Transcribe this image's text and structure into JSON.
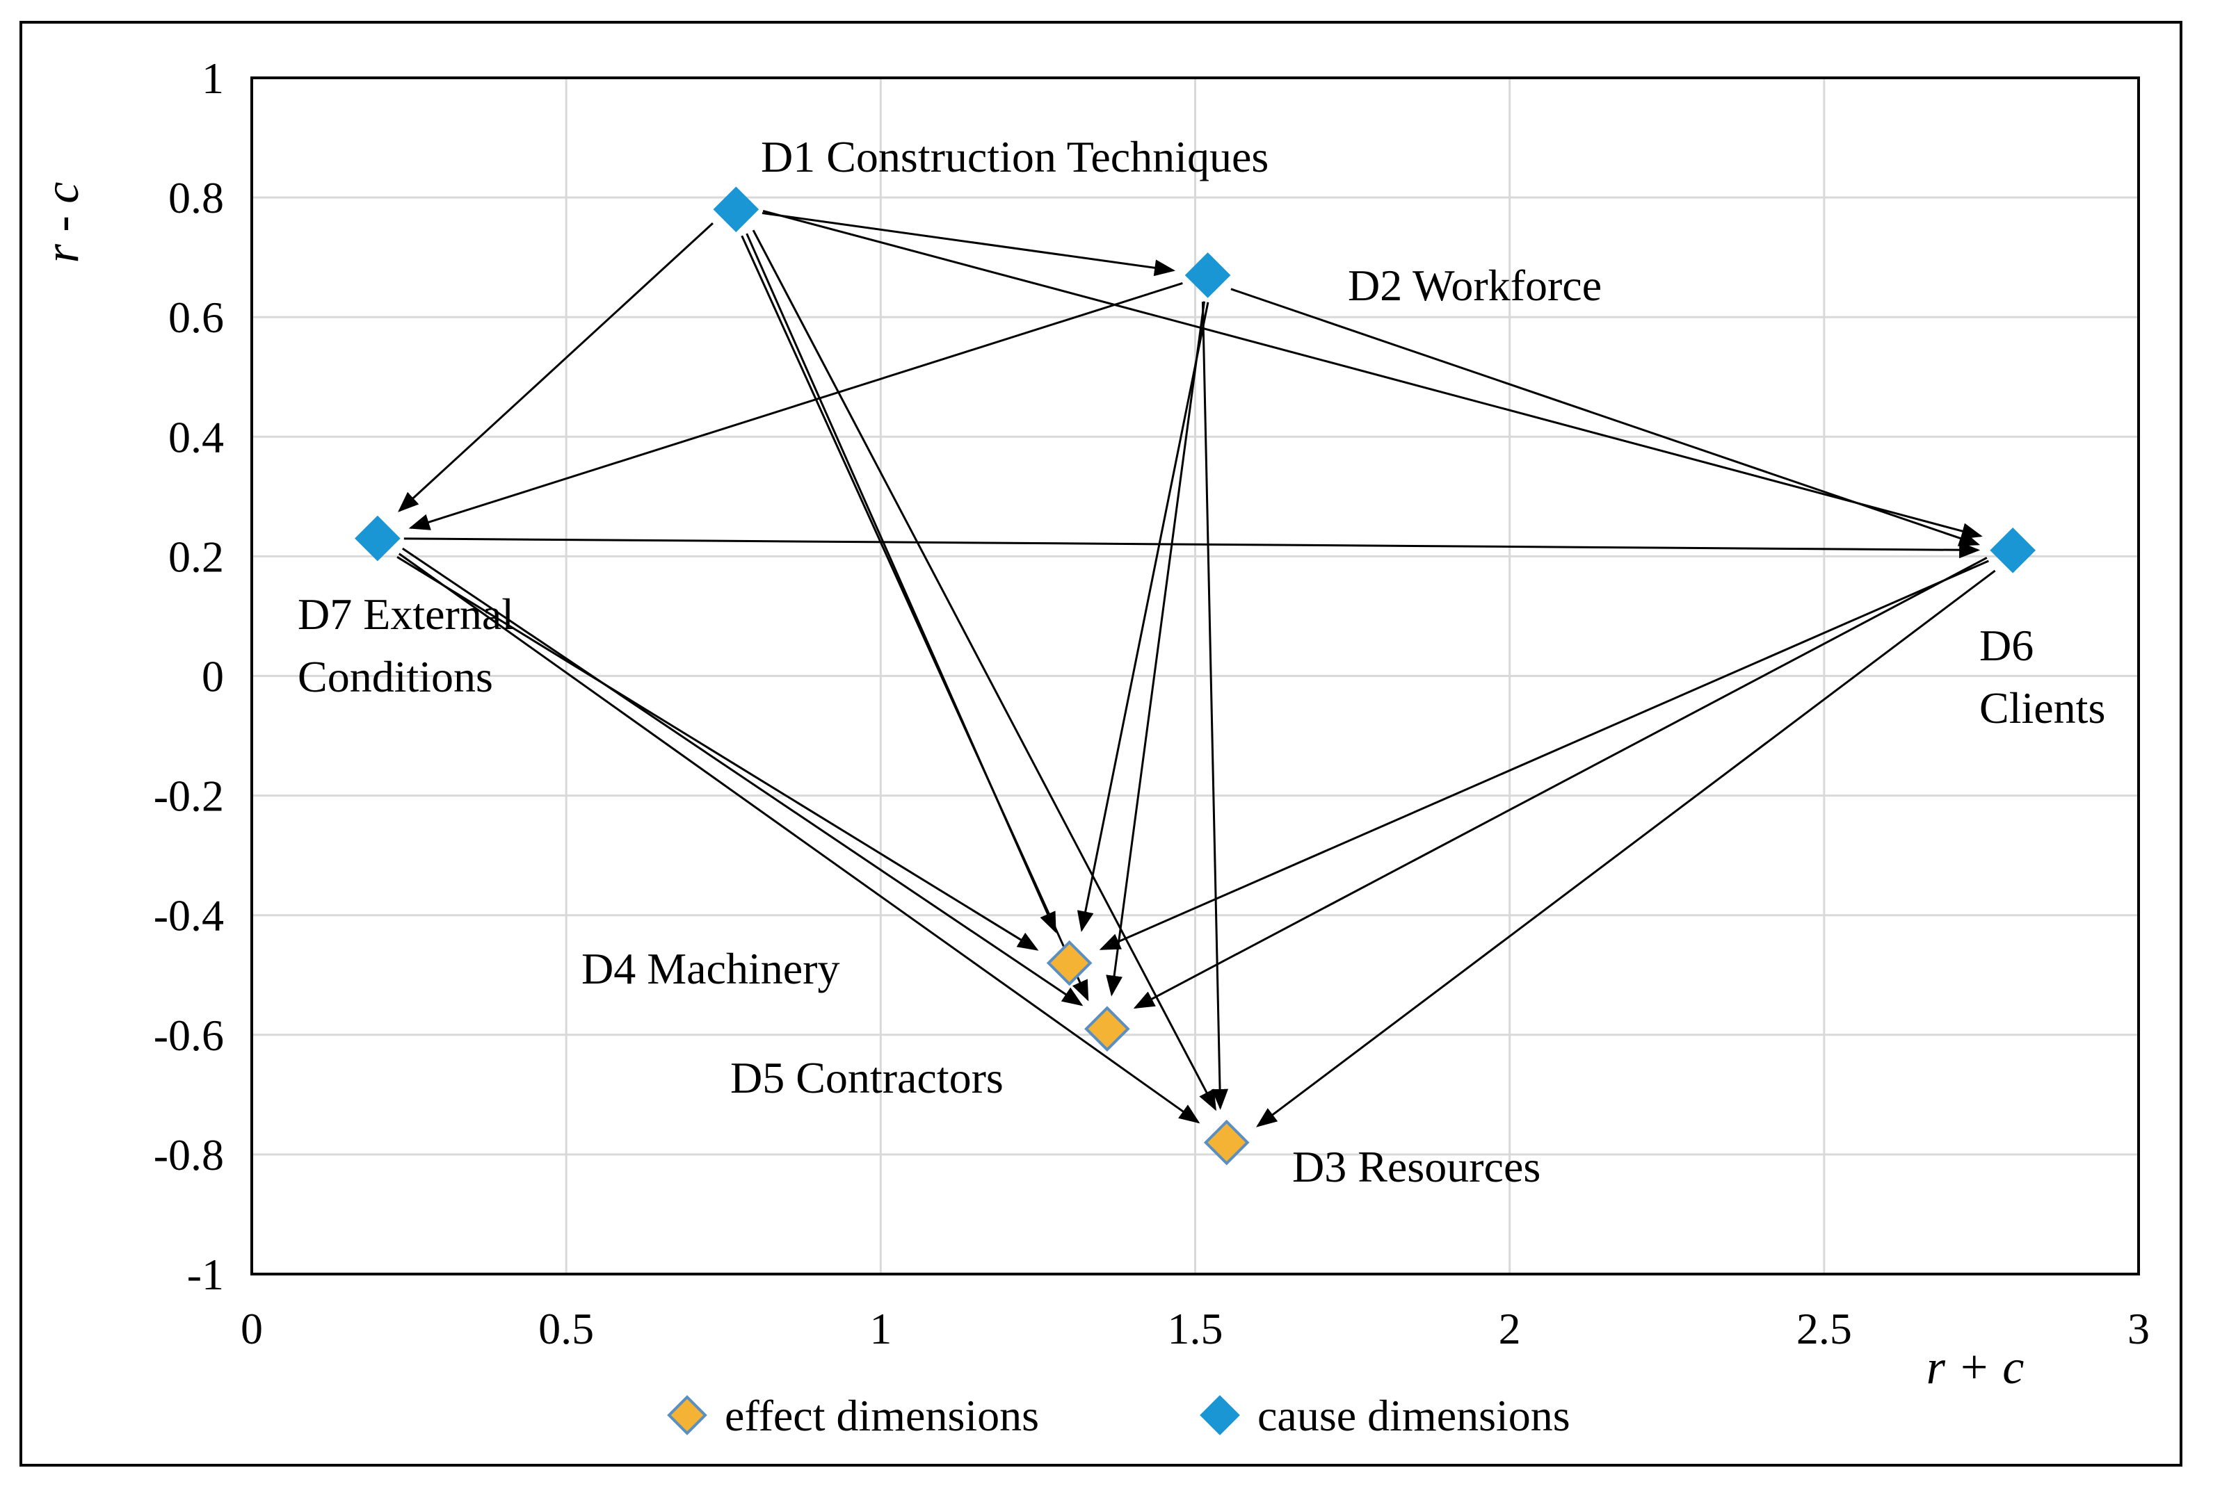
{
  "chart_data": {
    "type": "scatter",
    "title": "",
    "xlabel": "r + c",
    "ylabel": "r - c",
    "xlim": [
      0,
      3
    ],
    "ylim": [
      -1,
      1
    ],
    "xticks": [
      "0",
      "0.5",
      "1",
      "1.5",
      "2",
      "2.5",
      "3"
    ],
    "yticks": [
      "1",
      "0.8",
      "0.6",
      "0.4",
      "0.2",
      "0",
      "-0.2",
      "-0.4",
      "-0.6",
      "-0.8",
      "-1"
    ],
    "grid": true,
    "legend": {
      "placement": "bottom",
      "entries": [
        {
          "name": "effect dimensions",
          "color": "#f5b335"
        },
        {
          "name": "cause dimensions",
          "color": "#1a96d4"
        }
      ]
    },
    "points": [
      {
        "id": "D1",
        "label": "D1  Construction Techniques",
        "x": 0.77,
        "y": 0.78,
        "group": "cause"
      },
      {
        "id": "D2",
        "label": "D2 Workforce",
        "x": 1.52,
        "y": 0.67,
        "group": "cause"
      },
      {
        "id": "D3",
        "label": "D3 Resources",
        "x": 1.55,
        "y": -0.78,
        "group": "effect"
      },
      {
        "id": "D4",
        "label": "D4 Machinery",
        "x": 1.3,
        "y": -0.48,
        "group": "effect"
      },
      {
        "id": "D5",
        "label": "D5 Contractors",
        "x": 1.36,
        "y": -0.59,
        "group": "effect"
      },
      {
        "id": "D6",
        "label_lines": [
          "D6",
          "Clients"
        ],
        "x": 2.8,
        "y": 0.21,
        "group": "cause"
      },
      {
        "id": "D7",
        "label_lines": [
          "D7  External",
          "Conditions"
        ],
        "x": 0.2,
        "y": 0.23,
        "group": "cause"
      }
    ],
    "arrows": [
      {
        "from": "D1",
        "to": "D2"
      },
      {
        "from": "D1",
        "to": "D7"
      },
      {
        "from": "D1",
        "to": "D6"
      },
      {
        "from": "D1",
        "to": "D4"
      },
      {
        "from": "D1",
        "to": "D5"
      },
      {
        "from": "D1",
        "to": "D3"
      },
      {
        "from": "D2",
        "to": "D7"
      },
      {
        "from": "D2",
        "to": "D6"
      },
      {
        "from": "D2",
        "to": "D4"
      },
      {
        "from": "D2",
        "to": "D5"
      },
      {
        "from": "D2",
        "to": "D3"
      },
      {
        "from": "D7",
        "to": "D6"
      },
      {
        "from": "D7",
        "to": "D4"
      },
      {
        "from": "D7",
        "to": "D5"
      },
      {
        "from": "D7",
        "to": "D3"
      },
      {
        "from": "D6",
        "to": "D4"
      },
      {
        "from": "D6",
        "to": "D5"
      },
      {
        "from": "D6",
        "to": "D3"
      }
    ]
  }
}
